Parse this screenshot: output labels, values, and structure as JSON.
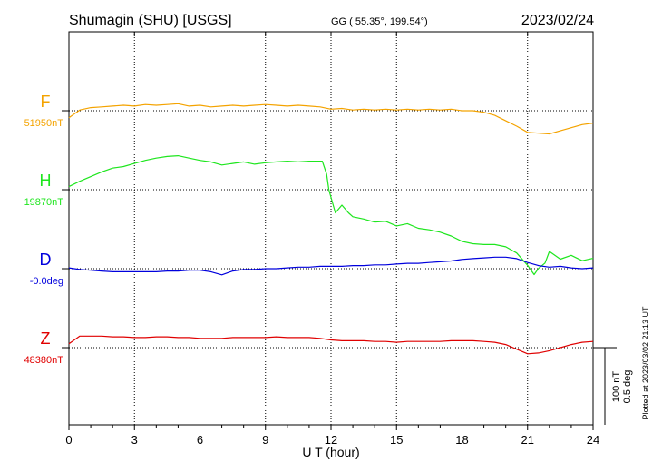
{
  "header": {
    "station": "Shumagin (SHU)  [USGS]",
    "coords": "GG ( 55.35°, 199.54°)",
    "date": "2023/02/24"
  },
  "footer": {
    "plotted": "Plotted at 2023/03/02 21:13 UT"
  },
  "scale": {
    "line1": "100 nT",
    "line2": "0.5 deg"
  },
  "chart_data": {
    "type": "line",
    "xlabel": "U T (hour)",
    "xlim": [
      0,
      24
    ],
    "xticks": [
      "0",
      "3",
      "6",
      "9",
      "12",
      "15",
      "18",
      "21",
      "24"
    ],
    "grid": true,
    "series": [
      {
        "name": "F",
        "baseline_label": "51950nT",
        "unit": "nT",
        "color": "#f4a300",
        "x": [
          0,
          0.5,
          1,
          1.5,
          2,
          2.5,
          3,
          3.5,
          4,
          4.5,
          5,
          5.5,
          6,
          6.5,
          7,
          7.5,
          8,
          8.5,
          9,
          9.5,
          10,
          10.5,
          11,
          11.5,
          12,
          12.5,
          13,
          13.5,
          14,
          14.5,
          15,
          15.5,
          16,
          16.5,
          17,
          17.5,
          18,
          18.5,
          19,
          19.5,
          20,
          20.5,
          21,
          21.5,
          22,
          22.5,
          23,
          23.5,
          24
        ],
        "y": [
          51941,
          51951,
          51954,
          51955,
          51956,
          51957,
          51956,
          51958,
          51957,
          51958,
          51959,
          51956,
          51957,
          51955,
          51956,
          51957,
          51956,
          51957,
          51958,
          51957,
          51956,
          51957,
          51956,
          51955,
          51952,
          51953,
          51951,
          51952,
          51951,
          51952,
          51951,
          51952,
          51951,
          51952,
          51951,
          51952,
          51950,
          51950,
          51948,
          51944,
          51937,
          51930,
          51922,
          51921,
          51920,
          51924,
          51928,
          51932,
          51934
        ]
      },
      {
        "name": "H",
        "baseline_label": "19870nT",
        "unit": "nT",
        "color": "#1ee61e",
        "x": [
          0,
          0.5,
          1,
          1.5,
          2,
          2.5,
          3,
          3.5,
          4,
          4.5,
          5,
          5.5,
          6,
          6.5,
          7,
          7.5,
          8,
          8.5,
          9,
          9.5,
          10,
          10.5,
          11,
          11.6,
          11.8,
          11.9,
          12.2,
          12.5,
          12.8,
          13,
          13.5,
          14,
          14.5,
          15,
          15.5,
          16,
          16.5,
          17,
          17.5,
          18,
          18.5,
          19,
          19.5,
          20,
          20.5,
          21,
          21.3,
          21.5,
          21.8,
          22,
          22.5,
          23,
          23.5,
          24
        ],
        "y": [
          19874,
          19881,
          19887,
          19893,
          19898,
          19900,
          19904,
          19908,
          19911,
          19913,
          19914,
          19911,
          19908,
          19906,
          19902,
          19904,
          19906,
          19903,
          19905,
          19906,
          19907,
          19906,
          19907,
          19907,
          19890,
          19870,
          19840,
          19850,
          19840,
          19835,
          19832,
          19828,
          19829,
          19823,
          19826,
          19820,
          19818,
          19815,
          19810,
          19803,
          19800,
          19799,
          19799,
          19796,
          19788,
          19772,
          19760,
          19768,
          19775,
          19790,
          19780,
          19785,
          19778,
          19781
        ]
      },
      {
        "name": "D",
        "baseline_label": "-0.0deg",
        "unit": "deg",
        "color": "#0000dd",
        "x": [
          0,
          0.5,
          1,
          1.5,
          2,
          2.5,
          3,
          3.5,
          4,
          4.5,
          5,
          5.5,
          6,
          6.5,
          7,
          7.5,
          8,
          8.5,
          9,
          9.5,
          10,
          10.5,
          11,
          11.5,
          12,
          12.5,
          13,
          13.5,
          14,
          14.5,
          15,
          15.5,
          16,
          16.5,
          17,
          17.5,
          18,
          18.5,
          19,
          19.5,
          20,
          20.5,
          21,
          21.5,
          22,
          22.5,
          23,
          23.5,
          24
        ],
        "y": [
          0.005,
          -0.005,
          -0.01,
          -0.015,
          -0.02,
          -0.02,
          -0.02,
          -0.02,
          -0.02,
          -0.015,
          -0.015,
          -0.01,
          -0.01,
          -0.02,
          -0.04,
          -0.015,
          -0.005,
          -0.005,
          0,
          0,
          0.005,
          0.01,
          0.01,
          0.015,
          0.015,
          0.015,
          0.02,
          0.02,
          0.025,
          0.025,
          0.03,
          0.035,
          0.035,
          0.04,
          0.045,
          0.05,
          0.06,
          0.065,
          0.07,
          0.075,
          0.075,
          0.065,
          0.04,
          0.02,
          0.01,
          0.015,
          0.005,
          0,
          0.005
        ]
      },
      {
        "name": "Z",
        "baseline_label": "48380nT",
        "unit": "nT",
        "color": "#e00000",
        "x": [
          0,
          0.5,
          1,
          1.5,
          2,
          2.5,
          3,
          3.5,
          4,
          4.5,
          5,
          5.5,
          6,
          6.5,
          7,
          7.5,
          8,
          8.5,
          9,
          9.5,
          10,
          10.5,
          11,
          11.5,
          12,
          12.5,
          13,
          13.5,
          14,
          14.5,
          15,
          15.5,
          16,
          16.5,
          17,
          17.5,
          18,
          18.5,
          19,
          19.5,
          20,
          20.5,
          21,
          21.5,
          22,
          22.5,
          23,
          23.5,
          24
        ],
        "y": [
          48385,
          48395,
          48395,
          48395,
          48394,
          48394,
          48393,
          48393,
          48394,
          48394,
          48393,
          48393,
          48392,
          48392,
          48392,
          48393,
          48393,
          48393,
          48393,
          48394,
          48393,
          48393,
          48393,
          48392,
          48390,
          48389,
          48389,
          48389,
          48388,
          48388,
          48387,
          48388,
          48388,
          48388,
          48388,
          48389,
          48389,
          48389,
          48388,
          48387,
          48384,
          48378,
          48372,
          48373,
          48376,
          48380,
          48384,
          48387,
          48388
        ]
      }
    ]
  }
}
